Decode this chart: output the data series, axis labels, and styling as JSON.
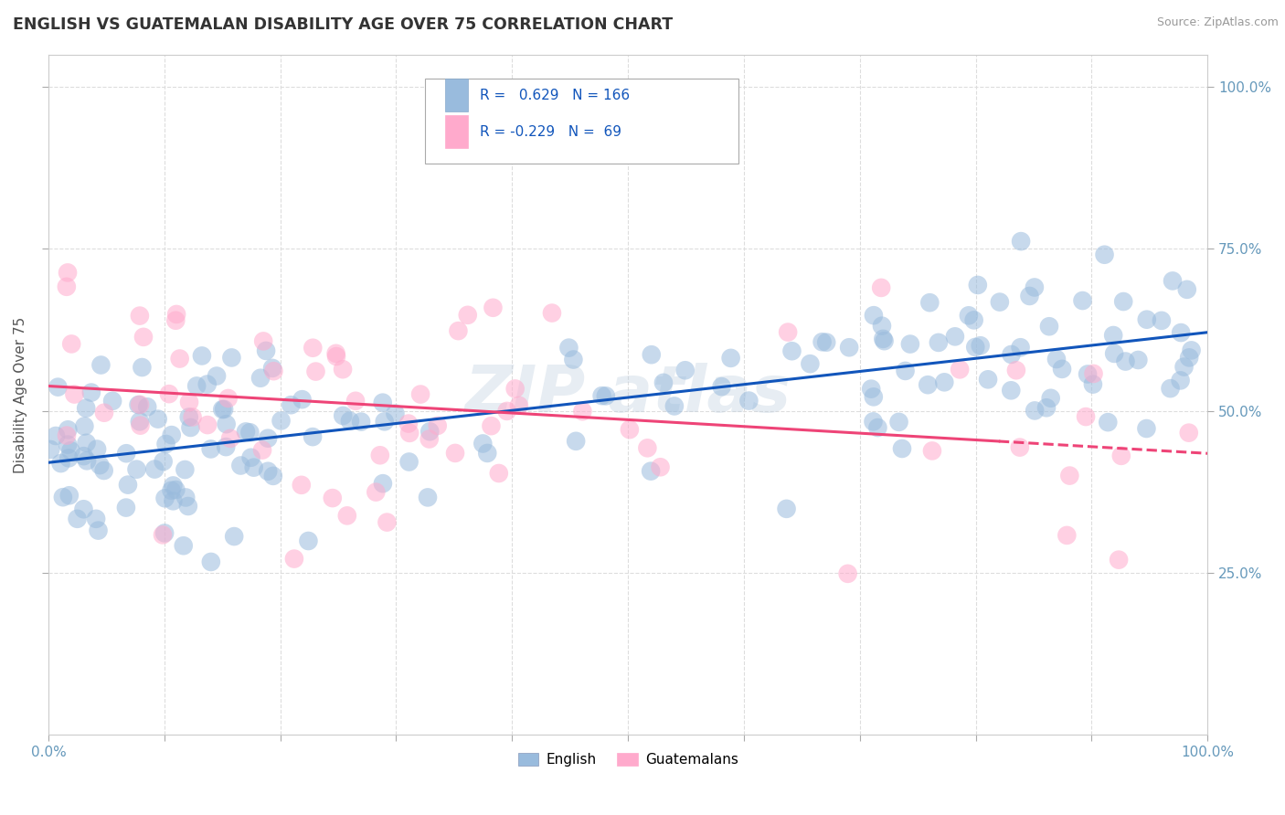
{
  "title": "ENGLISH VS GUATEMALAN DISABILITY AGE OVER 75 CORRELATION CHART",
  "source": "Source: ZipAtlas.com",
  "ylabel": "Disability Age Over 75",
  "xlim": [
    0.0,
    1.0
  ],
  "ylim": [
    0.0,
    1.05
  ],
  "english_color": "#99BBDD",
  "guatemalan_color": "#FFAACC",
  "english_r": 0.629,
  "english_n": 166,
  "guatemalan_r": -0.229,
  "guatemalan_n": 69,
  "english_line_color": "#1155BB",
  "guatemalan_line_color": "#EE4477",
  "background_color": "#FFFFFF",
  "grid_color": "#DDDDDD",
  "title_color": "#333333",
  "axis_color": "#6699BB",
  "legend_r_color": "#1155BB",
  "scatter_alpha": 0.55,
  "scatter_size": 220,
  "english_seed": 12,
  "guatemalan_seed": 7
}
